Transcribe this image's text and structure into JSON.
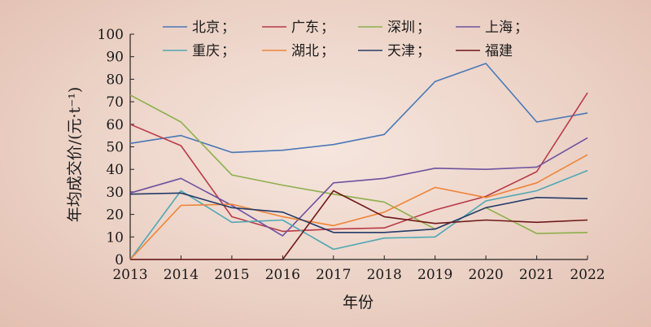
{
  "chart_data": {
    "type": "line",
    "title": "",
    "xlabel": "年份",
    "ylabel": "年均成交价/(元·t⁻¹)",
    "x": [
      2013,
      2014,
      2015,
      2016,
      2017,
      2018,
      2019,
      2020,
      2021,
      2022
    ],
    "ylim": [
      0,
      100
    ],
    "yticks": [
      0,
      10,
      20,
      30,
      40,
      50,
      60,
      70,
      80,
      90,
      100
    ],
    "grid": false,
    "legend_position": "top",
    "legend_separator": "；",
    "series": [
      {
        "name": "北京",
        "color": "#4a78b8",
        "values": [
          51.5,
          55,
          47.5,
          48.5,
          51,
          55.5,
          79,
          87,
          61,
          65
        ]
      },
      {
        "name": "广东",
        "color": "#b83a48",
        "values": [
          60,
          50.5,
          19,
          12.5,
          13.5,
          14,
          22,
          28,
          39,
          74
        ]
      },
      {
        "name": "深圳",
        "color": "#8db04c",
        "values": [
          73,
          61,
          37.5,
          33,
          29,
          25.5,
          13.5,
          23,
          11.5,
          12
        ]
      },
      {
        "name": "上海",
        "color": "#6e52a0",
        "values": [
          29.5,
          36,
          24,
          10.5,
          34,
          36,
          40.5,
          40,
          41,
          54
        ]
      },
      {
        "name": "重庆",
        "color": "#4fa8b4",
        "values": [
          0,
          30.5,
          16.5,
          17.5,
          4.5,
          9.5,
          10,
          26,
          30.5,
          39.5
        ]
      },
      {
        "name": "湖北",
        "color": "#ee8438",
        "values": [
          0,
          24,
          24.5,
          19,
          15,
          21,
          32,
          27.5,
          34,
          46.5
        ]
      },
      {
        "name": "天津",
        "color": "#243c6a",
        "values": [
          29,
          29.5,
          23,
          21,
          12,
          12,
          13.5,
          23,
          27.5,
          27
        ]
      },
      {
        "name": "福建",
        "color": "#6e1818",
        "values": [
          0,
          0,
          0,
          0,
          30.5,
          19,
          16,
          17.5,
          16.5,
          17.5
        ]
      }
    ]
  }
}
